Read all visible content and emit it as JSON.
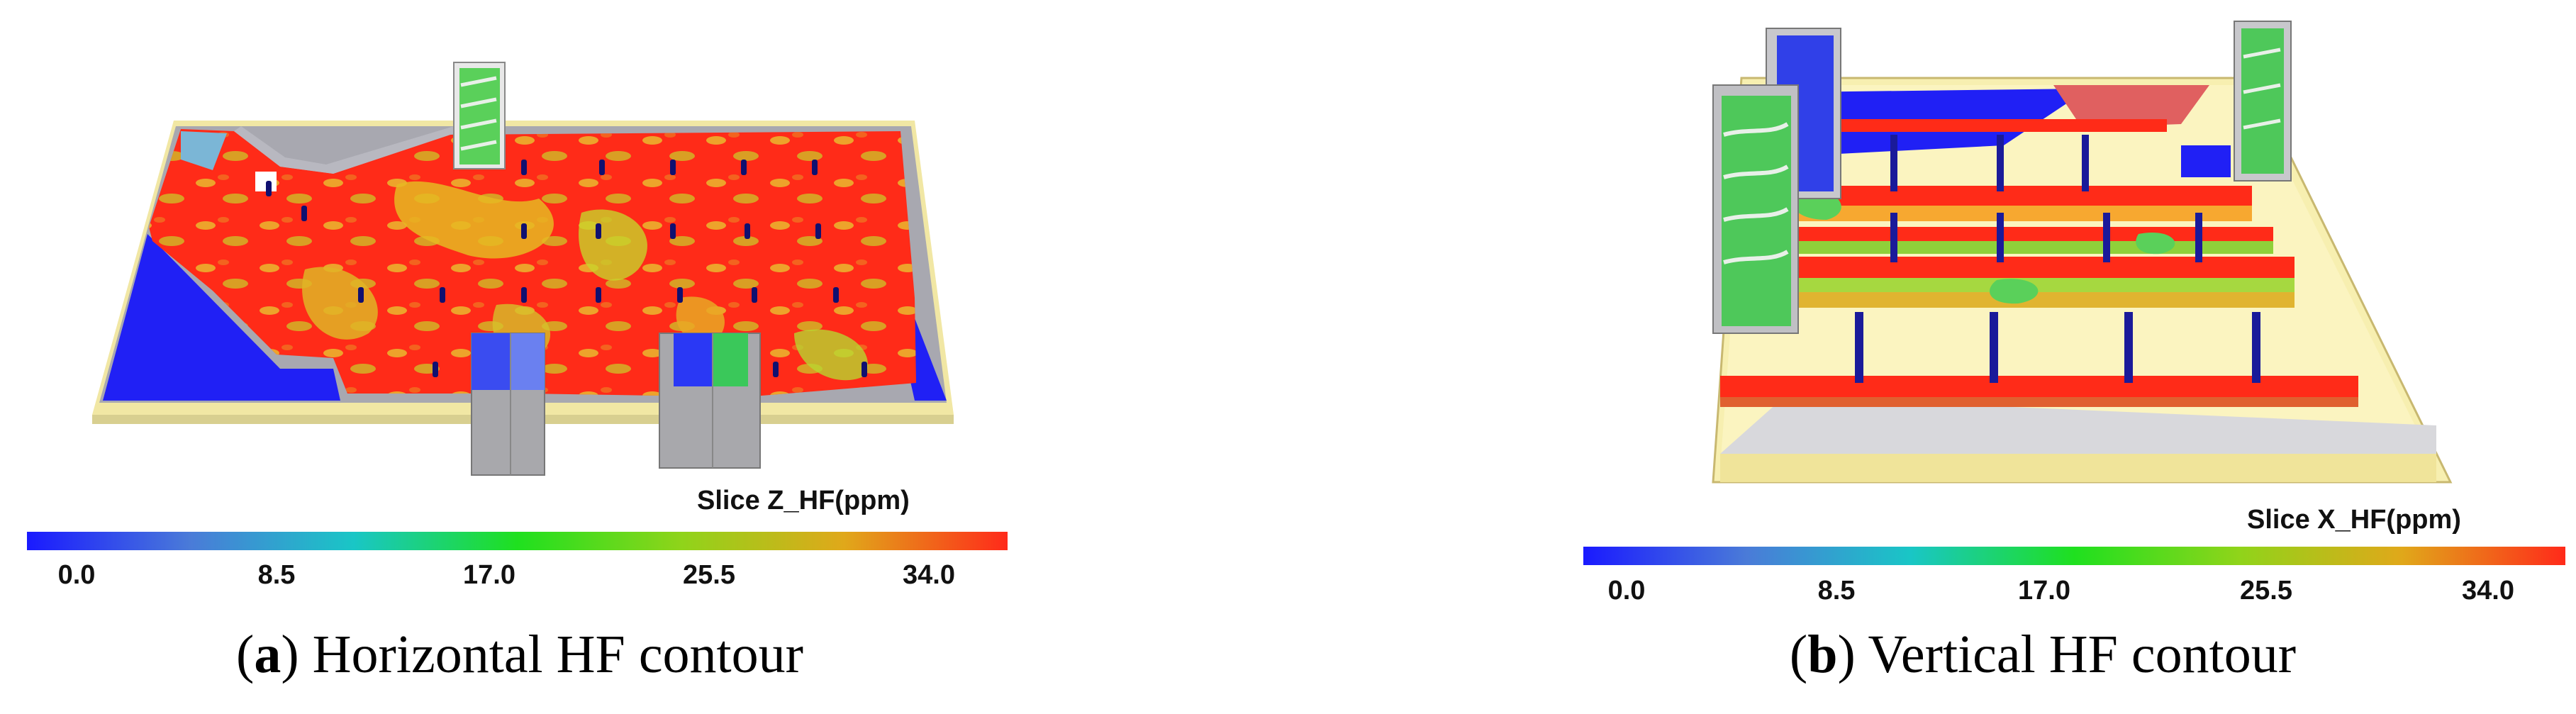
{
  "panels": [
    {
      "id": "a",
      "legend_title": "Slice  Z_HF(ppm)",
      "ticks": [
        "0.0",
        "8.5",
        "17.0",
        "25.5",
        "34.0"
      ],
      "caption_letter": "a",
      "caption_text": "Horizontal HF contour"
    },
    {
      "id": "b",
      "legend_title": "Slice  X_HF(ppm)",
      "ticks": [
        "0.0",
        "8.5",
        "17.0",
        "25.5",
        "34.0"
      ],
      "caption_letter": "b",
      "caption_text": "Vertical HF contour"
    }
  ],
  "colorbar_stops": [
    "#1a1aff",
    "#4a7bd8",
    "#19c6c6",
    "#1fe01f",
    "#8fd41a",
    "#e0a81a",
    "#ff2a1a"
  ]
}
